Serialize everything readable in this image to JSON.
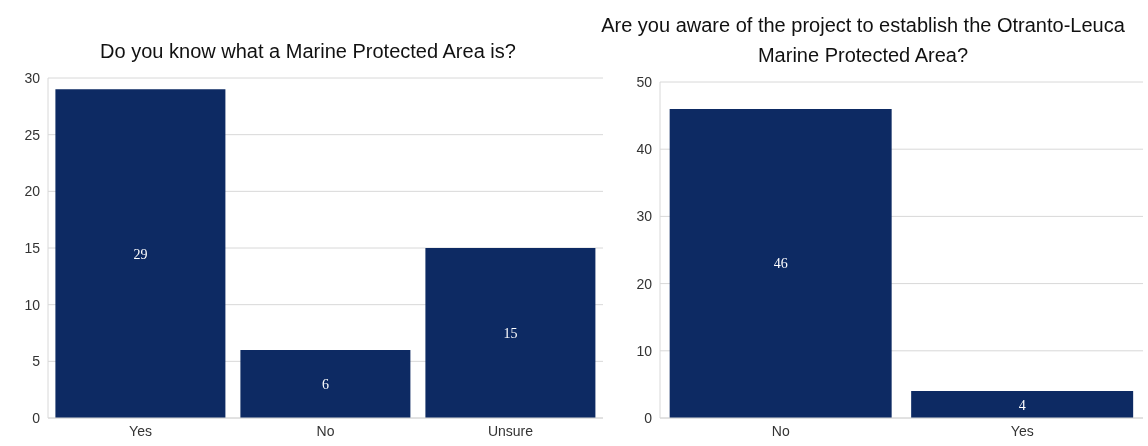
{
  "chart_data": [
    {
      "type": "bar",
      "title": "Do you know what a Marine Protected Area is?",
      "categories": [
        "Yes",
        "No",
        "Unsure"
      ],
      "values": [
        29,
        6,
        15
      ],
      "color": "#0d2a63",
      "ylim": [
        0,
        30
      ],
      "yticks": [
        0,
        5,
        10,
        15,
        20,
        25,
        30
      ],
      "grid": "y",
      "data_labels": true,
      "legend": false
    },
    {
      "type": "bar",
      "title": "Are you aware of the project to establish the Otranto-Leuca Marine Protected Area?",
      "categories": [
        "No",
        "Yes"
      ],
      "values": [
        46,
        4
      ],
      "color": "#0d2a63",
      "ylim": [
        0,
        50
      ],
      "yticks": [
        0,
        10,
        20,
        30,
        40,
        50
      ],
      "grid": "y",
      "data_labels": true,
      "legend": false
    }
  ]
}
